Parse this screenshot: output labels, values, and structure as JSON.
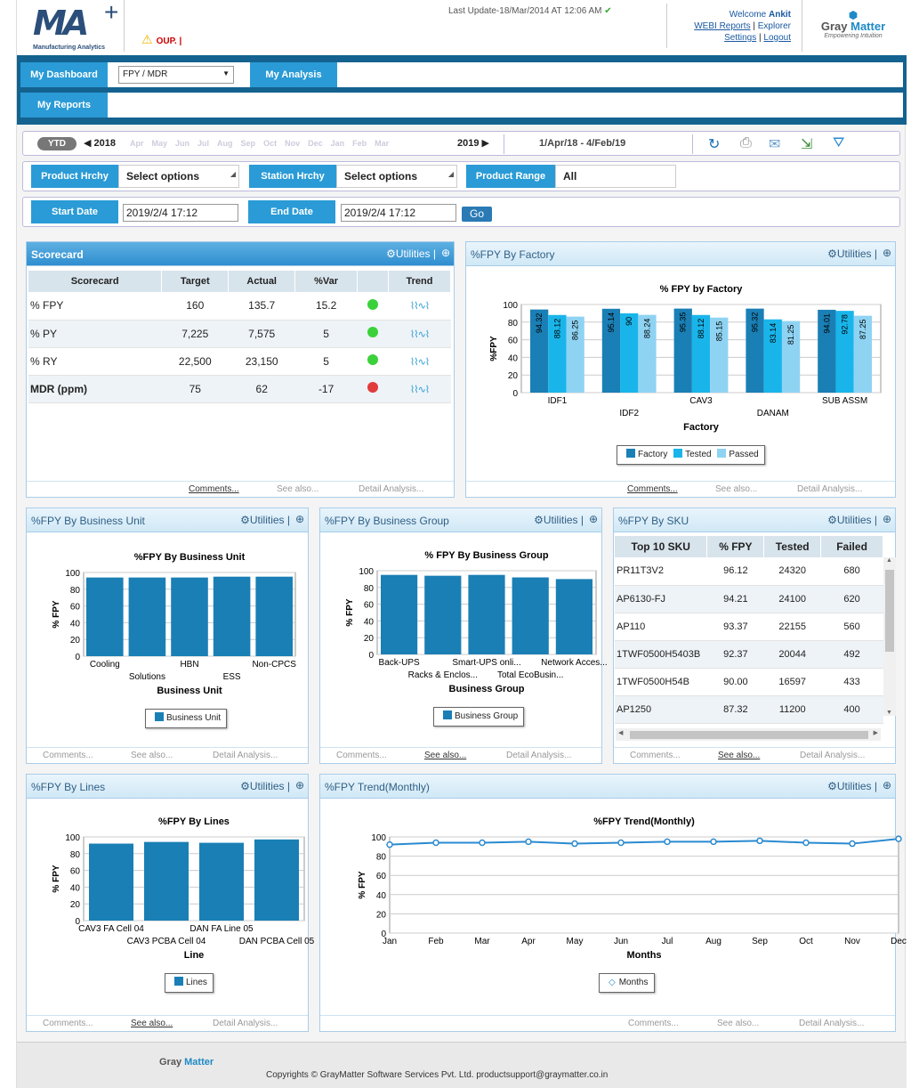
{
  "header": {
    "logo_text": "MA",
    "logo_sub": "Manufacturing Analytics",
    "last_update": "Last Update-18/Mar/2014 AT 12:06 AM",
    "warning_text": "OUP.  |",
    "welcome": "Welcome",
    "user": "Ankit",
    "links": {
      "webi": "WEBI Reports",
      "explorer": "Explorer",
      "settings": "Settings",
      "logout": "Logout"
    },
    "brand_gray": "Gray",
    "brand_matter": "Matter",
    "brand_tag": "Empowering Intuition"
  },
  "nav": {
    "my_dashboard": "My Dashboard",
    "dashboard_select": "FPY / MDR",
    "my_analysis": "My Analysis",
    "my_reports": "My Reports"
  },
  "datebar": {
    "ytd": "YTD",
    "start_year": "2018",
    "end_year": "2019",
    "months": [
      "Apr",
      "May",
      "Jun",
      "Jul",
      "Aug",
      "Sep",
      "Oct",
      "Nov",
      "Dec",
      "Jan",
      "Feb",
      "Mar"
    ],
    "range": "1/Apr/18 - 4/Feb/19"
  },
  "filters": {
    "product_hrchy": "Product Hrchy",
    "product_hrchy_value": "Select options",
    "station_hrchy": "Station Hrchy",
    "station_hrchy_value": "Select options",
    "product_range": "Product Range",
    "product_range_value": "All",
    "start_date_label": "Start Date",
    "start_date": "2019/2/4 17:12",
    "end_date_label": "End Date",
    "end_date": "2019/2/4 17:12",
    "go": "Go"
  },
  "common": {
    "utilities": "Utilities",
    "comments": "Comments...",
    "see_also": "See also...",
    "detail": "Detail Analysis..."
  },
  "scorecard": {
    "title": "Scorecard",
    "columns": [
      "Scorecard",
      "Target",
      "Actual",
      "%Var",
      "",
      "Trend"
    ],
    "rows": [
      {
        "name": "% FPY",
        "target": "160",
        "actual": "135.7",
        "var": "15.2",
        "status": "green"
      },
      {
        "name": "% PY",
        "target": "7,225",
        "actual": "7,575",
        "var": "5",
        "status": "green"
      },
      {
        "name": "% RY",
        "target": "22,500",
        "actual": "23,150",
        "var": "5",
        "status": "green"
      },
      {
        "name": "MDR (ppm)",
        "target": "75",
        "actual": "62",
        "var": "-17",
        "status": "red"
      }
    ]
  },
  "fpy_factory": {
    "title": "%FPY By Factory",
    "chart_title": "% FPY by Factory",
    "xlabel": "Factory",
    "ylabel": "%FPY",
    "legend": [
      "Factory",
      "Tested",
      "Passed"
    ]
  },
  "fpy_bu": {
    "title": "%FPY By Business Unit",
    "chart_title": "%FPY By Business Unit",
    "xlabel": "Business Unit",
    "ylabel": "% FPY",
    "legend": "Business Unit"
  },
  "fpy_bg": {
    "title": "%FPY By Business Group",
    "chart_title": "% FPY By Business Group",
    "xlabel": "Business Group",
    "ylabel": "% FPY",
    "legend": "Business Group"
  },
  "fpy_sku": {
    "title": "%FPY By SKU",
    "columns": [
      "Top 10 SKU",
      "% FPY",
      "Tested",
      "Failed"
    ],
    "rows": [
      [
        "PR11T3V2",
        "96.12",
        "24320",
        "680"
      ],
      [
        "AP6130-FJ",
        "94.21",
        "24100",
        "620"
      ],
      [
        "AP110",
        "93.37",
        "22155",
        "560"
      ],
      [
        "1TWF0500H5403B",
        "92.37",
        "20044",
        "492"
      ],
      [
        "1TWF0500H54B",
        "90.00",
        "16597",
        "433"
      ],
      [
        "AP1250",
        "87.32",
        "11200",
        "400"
      ]
    ]
  },
  "fpy_lines": {
    "title": "%FPY By Lines",
    "chart_title": "%FPY By Lines",
    "xlabel": "Line",
    "ylabel": "% FPY",
    "legend": "Lines"
  },
  "fpy_trend": {
    "title": "%FPY Trend(Monthly)",
    "chart_title": "%FPY Trend(Monthly)",
    "xlabel": "Months",
    "ylabel": "% FPY",
    "legend": "Months"
  },
  "footer": {
    "brand_gray": "Gray",
    "brand_matter": "Matter",
    "copyright": "Copyrights © GrayMatter Software Services Pvt. Ltd. productsupport@graymatter.co.in"
  },
  "colors": {
    "dark": "#1a7fb5",
    "mid": "#19b5ea",
    "light": "#8fd3f3",
    "nav": "#14628f",
    "accent": "#2a9bd6"
  },
  "chart_data": [
    {
      "type": "bar",
      "title": "% FPY by Factory",
      "xlabel": "Factory",
      "ylabel": "%FPY",
      "categories": [
        "IDF1",
        "IDF2",
        "CAV3",
        "DANAM",
        "SUB ASSM"
      ],
      "series": [
        {
          "name": "Factory",
          "values": [
            94.32,
            95.14,
            95.35,
            95.32,
            94.01
          ]
        },
        {
          "name": "Tested",
          "values": [
            88.12,
            90,
            88.12,
            83.14,
            92.78
          ]
        },
        {
          "name": "Passed",
          "values": [
            86.25,
            88.24,
            85.15,
            81.25,
            87.25
          ]
        }
      ],
      "ylim": [
        0,
        100
      ],
      "yticks": [
        0,
        20,
        40,
        60,
        80,
        100
      ]
    },
    {
      "type": "bar",
      "title": "%FPY By Business Unit",
      "xlabel": "Business Unit",
      "ylabel": "% FPY",
      "categories": [
        "Cooling",
        "Solutions",
        "HBN",
        "ESS",
        "Non-CPCS"
      ],
      "series": [
        {
          "name": "Business Unit",
          "values": [
            94,
            94,
            94,
            95,
            95
          ]
        }
      ],
      "ylim": [
        0,
        100
      ],
      "yticks": [
        0,
        20,
        40,
        60,
        80,
        100
      ]
    },
    {
      "type": "bar",
      "title": "% FPY By Business Group",
      "xlabel": "Business Group",
      "ylabel": "% FPY",
      "categories": [
        "Back-UPS",
        "Racks & Enclos...",
        "Smart-UPS onli...",
        "Total EcoBusin...",
        "Network Acces..."
      ],
      "series": [
        {
          "name": "Business Group",
          "values": [
            95,
            94,
            95,
            92,
            90
          ]
        }
      ],
      "ylim": [
        0,
        100
      ],
      "yticks": [
        0,
        20,
        40,
        60,
        80,
        100
      ]
    },
    {
      "type": "bar",
      "title": "%FPY By Lines",
      "xlabel": "Line",
      "ylabel": "% FPY",
      "categories": [
        "CAV3 FA Cell 04",
        "CAV3 PCBA Cell 04",
        "DAN FA Line 05",
        "DAN PCBA Cell 05"
      ],
      "series": [
        {
          "name": "Lines",
          "values": [
            92,
            94,
            93,
            97
          ]
        }
      ],
      "ylim": [
        0,
        100
      ],
      "yticks": [
        0,
        20,
        40,
        60,
        80,
        100
      ]
    },
    {
      "type": "line",
      "title": "%FPY Trend(Monthly)",
      "xlabel": "Months",
      "ylabel": "% FPY",
      "categories": [
        "Jan",
        "Feb",
        "Mar",
        "Apr",
        "May",
        "Jun",
        "Jul",
        "Aug",
        "Sep",
        "Oct",
        "Nov",
        "Dec"
      ],
      "series": [
        {
          "name": "Months",
          "values": [
            92,
            94,
            94,
            95,
            93,
            94,
            95,
            95,
            96,
            94,
            93,
            98
          ]
        }
      ],
      "ylim": [
        0,
        100
      ],
      "yticks": [
        0,
        20,
        40,
        60,
        80,
        100
      ]
    }
  ]
}
